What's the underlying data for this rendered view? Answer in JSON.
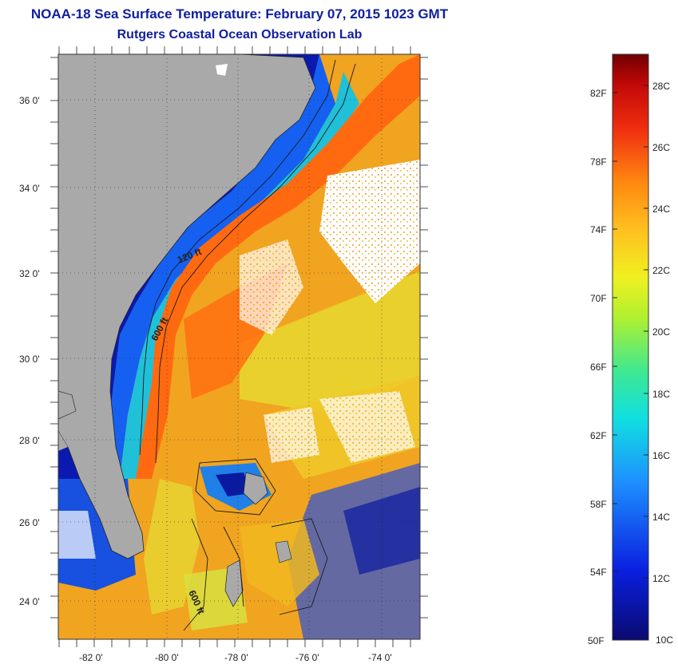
{
  "title": "NOAA-18 Sea Surface Temperature:  February 07, 2015 1023 GMT",
  "subtitle": "Rutgers Coastal Ocean Observation Lab",
  "map": {
    "lat_labels": [
      "36 0'",
      "34 0'",
      "32 0'",
      "30 0'",
      "28 0'",
      "26 0'",
      "24 0'"
    ],
    "lon_labels": [
      "-82 0'",
      "-80 0'",
      "-78 0'",
      "-76 0'",
      "-74 0'"
    ],
    "contour_labels": [
      "120 ft",
      "600 ft",
      "600 ft"
    ]
  },
  "colorbar": {
    "fahrenheit": [
      "82F",
      "78F",
      "74F",
      "70F",
      "66F",
      "62F",
      "58F",
      "54F",
      "50F"
    ],
    "celsius": [
      "28C",
      "26C",
      "24C",
      "22C",
      "20C",
      "18C",
      "16C",
      "14C",
      "12C",
      "10C"
    ]
  },
  "colors": {
    "land": "#a9a9a9",
    "title": "#1020a0",
    "cold": "#0a0a90",
    "warm": "#f07a10",
    "gulfstream": "#ff5a08"
  }
}
